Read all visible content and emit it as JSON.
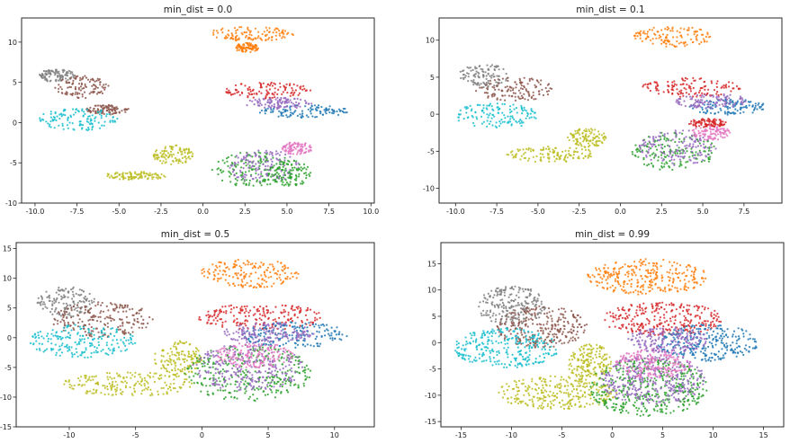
{
  "figure": {
    "background": "#ffffff"
  },
  "chart_data": [
    {
      "type": "scatter",
      "title": "min_dist = 0.0",
      "xlim": [
        -10.8,
        10.2
      ],
      "ylim": [
        -10,
        13
      ],
      "xticks": [
        -10.0,
        -7.5,
        -5.0,
        -2.5,
        0.0,
        2.5,
        5.0,
        7.5,
        10.0
      ],
      "xtick_labels": [
        "-10.0",
        "-7.5",
        "-5.0",
        "-2.5",
        "0.0",
        "2.5",
        "5.0",
        "7.5",
        "10.0"
      ],
      "yticks": [
        -10,
        -5,
        0,
        5,
        10
      ],
      "ytick_labels": [
        "-10",
        "-5",
        "0",
        "5",
        "10"
      ],
      "grid": false,
      "clusters": [
        {
          "color": "#ff7f0e",
          "cx": 2.8,
          "cy": 11.0,
          "rx": 2.6,
          "ry": 0.9
        },
        {
          "color": "#ff7f0e",
          "cx": 2.6,
          "cy": 9.3,
          "rx": 0.7,
          "ry": 0.6
        },
        {
          "color": "#d62728",
          "cx": 3.8,
          "cy": 4.0,
          "rx": 2.6,
          "ry": 1.0
        },
        {
          "color": "#1f77b4",
          "cx": 6.0,
          "cy": 1.4,
          "rx": 2.7,
          "ry": 0.8
        },
        {
          "color": "#9467bd",
          "cx": 4.5,
          "cy": 2.4,
          "rx": 2.0,
          "ry": 0.7
        },
        {
          "color": "#7f7f7f",
          "cx": -8.7,
          "cy": 5.8,
          "rx": 1.1,
          "ry": 0.9
        },
        {
          "color": "#8c564b",
          "cx": -7.2,
          "cy": 4.4,
          "rx": 1.6,
          "ry": 1.4
        },
        {
          "color": "#8c564b",
          "cx": -5.7,
          "cy": 1.6,
          "rx": 1.3,
          "ry": 0.6
        },
        {
          "color": "#17becf",
          "cx": -7.4,
          "cy": 0.4,
          "rx": 2.4,
          "ry": 1.4
        },
        {
          "color": "#bcbd22",
          "cx": -4.0,
          "cy": -6.6,
          "rx": 2.0,
          "ry": 0.5
        },
        {
          "color": "#bcbd22",
          "cx": -1.8,
          "cy": -4.0,
          "rx": 1.2,
          "ry": 1.3
        },
        {
          "color": "#2ca02c",
          "cx": 3.0,
          "cy": -5.8,
          "rx": 2.5,
          "ry": 2.2
        },
        {
          "color": "#9467bd",
          "cx": 3.6,
          "cy": -5.4,
          "rx": 2.2,
          "ry": 2.0
        },
        {
          "color": "#e377c2",
          "cx": 5.6,
          "cy": -3.2,
          "rx": 0.9,
          "ry": 0.8
        },
        {
          "color": "#2ca02c",
          "cx": 5.2,
          "cy": -6.3,
          "rx": 1.3,
          "ry": 1.6
        }
      ]
    },
    {
      "type": "scatter",
      "title": "min_dist = 0.1",
      "xlim": [
        -11.0,
        9.8
      ],
      "ylim": [
        -12,
        13
      ],
      "xticks": [
        -10.0,
        -7.5,
        -5.0,
        -2.5,
        0.0,
        2.5,
        5.0,
        7.5
      ],
      "xtick_labels": [
        "-10.0",
        "-7.5",
        "-5.0",
        "-2.5",
        "0.0",
        "2.5",
        "5.0",
        "7.5"
      ],
      "yticks": [
        -10,
        -5,
        0,
        5,
        10
      ],
      "ytick_labels": [
        "-10",
        "-5",
        "0",
        "5",
        "10"
      ],
      "grid": false,
      "clusters": [
        {
          "color": "#ff7f0e",
          "cx": 3.2,
          "cy": 10.5,
          "rx": 2.4,
          "ry": 1.4
        },
        {
          "color": "#d62728",
          "cx": 4.3,
          "cy": 3.6,
          "rx": 3.0,
          "ry": 1.3
        },
        {
          "color": "#1f77b4",
          "cx": 6.6,
          "cy": 1.0,
          "rx": 2.4,
          "ry": 1.1
        },
        {
          "color": "#9467bd",
          "cx": 5.5,
          "cy": 1.8,
          "rx": 2.2,
          "ry": 1.0
        },
        {
          "color": "#7f7f7f",
          "cx": -8.3,
          "cy": 5.2,
          "rx": 1.5,
          "ry": 1.6
        },
        {
          "color": "#8c564b",
          "cx": -6.4,
          "cy": 3.4,
          "rx": 2.4,
          "ry": 1.6
        },
        {
          "color": "#17becf",
          "cx": -7.5,
          "cy": -0.2,
          "rx": 2.6,
          "ry": 1.7
        },
        {
          "color": "#bcbd22",
          "cx": -4.2,
          "cy": -5.4,
          "rx": 2.7,
          "ry": 1.1
        },
        {
          "color": "#bcbd22",
          "cx": -2.0,
          "cy": -3.2,
          "rx": 1.2,
          "ry": 1.3
        },
        {
          "color": "#2ca02c",
          "cx": 3.2,
          "cy": -5.0,
          "rx": 2.6,
          "ry": 2.6
        },
        {
          "color": "#9467bd",
          "cx": 3.5,
          "cy": -4.5,
          "rx": 2.4,
          "ry": 2.4
        },
        {
          "color": "#e377c2",
          "cx": 5.5,
          "cy": -2.5,
          "rx": 1.2,
          "ry": 1.0
        },
        {
          "color": "#d62728",
          "cx": 5.3,
          "cy": -1.2,
          "rx": 1.2,
          "ry": 0.6
        }
      ]
    },
    {
      "type": "scatter",
      "title": "min_dist = 0.5",
      "xlim": [
        -14.0,
        13.0
      ],
      "ylim": [
        -15,
        16
      ],
      "xticks": [
        -10,
        -5,
        0,
        5,
        10
      ],
      "xtick_labels": [
        "-10",
        "-5",
        "0",
        "5",
        "10"
      ],
      "yticks": [
        -15,
        -10,
        -5,
        0,
        5,
        10,
        15
      ],
      "ytick_labels": [
        "-15",
        "-10",
        "-5",
        "0",
        "5",
        "10",
        "15"
      ],
      "grid": false,
      "clusters": [
        {
          "color": "#ff7f0e",
          "cx": 3.6,
          "cy": 10.8,
          "rx": 3.8,
          "ry": 2.4
        },
        {
          "color": "#d62728",
          "cx": 4.5,
          "cy": 3.5,
          "rx": 4.8,
          "ry": 2.2
        },
        {
          "color": "#1f77b4",
          "cx": 7.0,
          "cy": 0.5,
          "rx": 4.0,
          "ry": 2.2
        },
        {
          "color": "#9467bd",
          "cx": 5.0,
          "cy": 0.8,
          "rx": 3.5,
          "ry": 1.8
        },
        {
          "color": "#7f7f7f",
          "cx": -10.2,
          "cy": 6.0,
          "rx": 2.2,
          "ry": 2.6
        },
        {
          "color": "#8c564b",
          "cx": -7.5,
          "cy": 3.0,
          "rx": 3.8,
          "ry": 3.0
        },
        {
          "color": "#17becf",
          "cx": -9.0,
          "cy": -0.6,
          "rx": 4.0,
          "ry": 2.8
        },
        {
          "color": "#bcbd22",
          "cx": -5.5,
          "cy": -7.8,
          "rx": 5.0,
          "ry": 2.0
        },
        {
          "color": "#bcbd22",
          "cx": -1.8,
          "cy": -3.5,
          "rx": 1.8,
          "ry": 3.0
        },
        {
          "color": "#2ca02c",
          "cx": 3.5,
          "cy": -6.0,
          "rx": 4.8,
          "ry": 4.8
        },
        {
          "color": "#9467bd",
          "cx": 3.5,
          "cy": -5.0,
          "rx": 4.2,
          "ry": 4.0
        },
        {
          "color": "#e377c2",
          "cx": 4.0,
          "cy": -3.0,
          "rx": 3.0,
          "ry": 2.2
        }
      ]
    },
    {
      "type": "scatter",
      "title": "min_dist = 0.99",
      "xlim": [
        -17.0,
        17.0
      ],
      "ylim": [
        -16,
        19
      ],
      "xticks": [
        -15,
        -10,
        -5,
        0,
        5,
        10,
        15
      ],
      "xtick_labels": [
        "-15",
        "-10",
        "-5",
        "0",
        "5",
        "10",
        "15"
      ],
      "yticks": [
        -15,
        -10,
        -5,
        0,
        5,
        10,
        15
      ],
      "ytick_labels": [
        "-15",
        "-10",
        "-5",
        "0",
        "5",
        "10",
        "15"
      ],
      "grid": false,
      "clusters": [
        {
          "color": "#ff7f0e",
          "cx": 3.5,
          "cy": 12.5,
          "rx": 6.0,
          "ry": 3.4
        },
        {
          "color": "#d62728",
          "cx": 5.0,
          "cy": 4.5,
          "rx": 6.0,
          "ry": 3.2
        },
        {
          "color": "#1f77b4",
          "cx": 9.5,
          "cy": 0.0,
          "rx": 5.0,
          "ry": 3.5
        },
        {
          "color": "#9467bd",
          "cx": 5.5,
          "cy": 0.5,
          "rx": 4.0,
          "ry": 2.5
        },
        {
          "color": "#7f7f7f",
          "cx": -10.0,
          "cy": 7.0,
          "rx": 3.4,
          "ry": 3.8
        },
        {
          "color": "#8c564b",
          "cx": -7.0,
          "cy": 3.0,
          "rx": 4.5,
          "ry": 4.0
        },
        {
          "color": "#17becf",
          "cx": -10.5,
          "cy": -1.0,
          "rx": 5.2,
          "ry": 3.8
        },
        {
          "color": "#bcbd22",
          "cx": -5.5,
          "cy": -9.5,
          "rx": 6.0,
          "ry": 3.2
        },
        {
          "color": "#bcbd22",
          "cx": -2.2,
          "cy": -4.0,
          "rx": 2.2,
          "ry": 3.8
        },
        {
          "color": "#2ca02c",
          "cx": 3.5,
          "cy": -8.5,
          "rx": 6.0,
          "ry": 5.5
        },
        {
          "color": "#9467bd",
          "cx": 4.0,
          "cy": -7.0,
          "rx": 5.2,
          "ry": 4.8
        },
        {
          "color": "#e377c2",
          "cx": 4.0,
          "cy": -4.0,
          "rx": 3.8,
          "ry": 2.8
        }
      ]
    }
  ]
}
